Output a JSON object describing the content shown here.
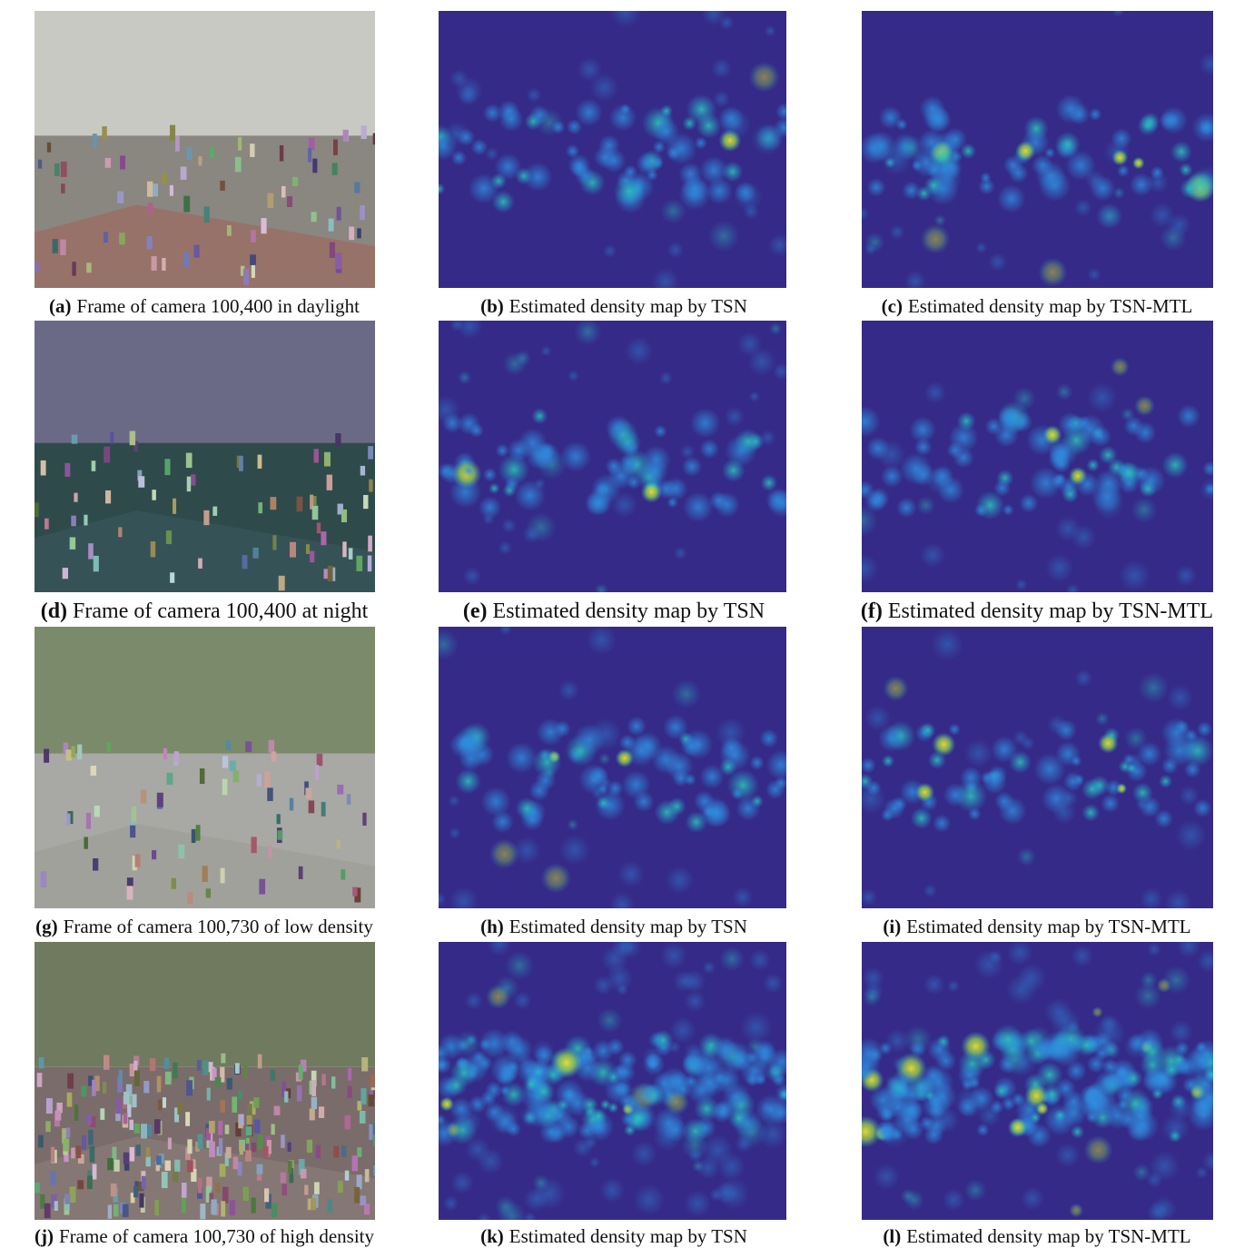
{
  "rows": [
    {
      "panels": [
        {
          "label": "(a)",
          "text": "Frame of camera 100,400 in daylight"
        },
        {
          "label": "(b)",
          "text": "Estimated density map by TSN"
        },
        {
          "label": "(c)",
          "text": "Estimated density map by TSN-MTL"
        }
      ]
    },
    {
      "panels": [
        {
          "label": "(d)",
          "text": "Frame of camera 100,400 at night"
        },
        {
          "label": "(e)",
          "text": "Estimated density map by TSN"
        },
        {
          "label": "(f)",
          "text": "Estimated density map by TSN-MTL"
        }
      ]
    },
    {
      "panels": [
        {
          "label": "(g)",
          "text": "Frame of camera 100,730 of low density"
        },
        {
          "label": "(h)",
          "text": "Estimated density map by TSN"
        },
        {
          "label": "(i)",
          "text": "Estimated density map by TSN-MTL"
        }
      ]
    },
    {
      "panels": [
        {
          "label": "(j)",
          "text": "Frame of camera 100,730 of high density"
        },
        {
          "label": "(k)",
          "text": "Estimated density map by TSN"
        },
        {
          "label": "(l)",
          "text": "Estimated density map by TSN-MTL"
        }
      ]
    }
  ]
}
